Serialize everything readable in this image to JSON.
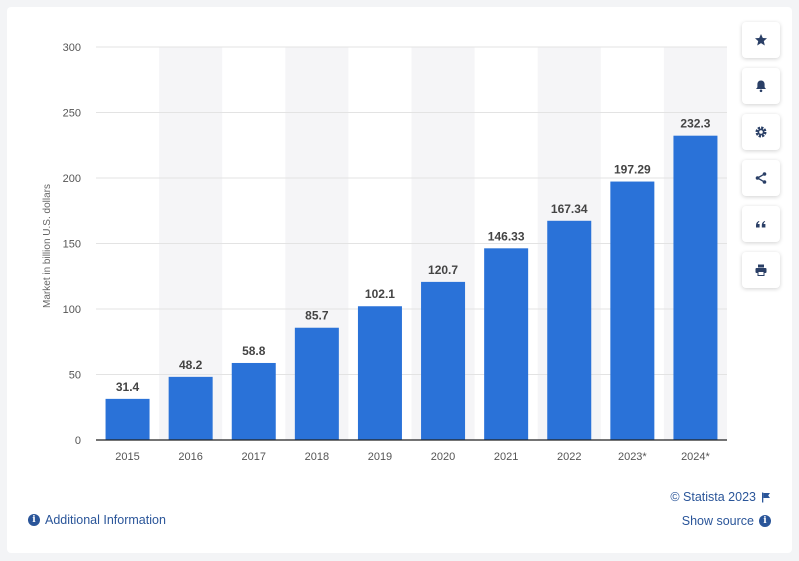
{
  "chart_data": {
    "type": "bar",
    "categories": [
      "2015",
      "2016",
      "2017",
      "2018",
      "2019",
      "2020",
      "2021",
      "2022",
      "2023*",
      "2024*"
    ],
    "values": [
      31.4,
      48.2,
      58.8,
      85.7,
      102.1,
      120.7,
      146.33,
      167.34,
      197.29,
      232.3
    ],
    "value_labels": [
      "31.4",
      "48.2",
      "58.8",
      "85.7",
      "102.1",
      "120.7",
      "146.33",
      "167.34",
      "197.29",
      "232.3"
    ],
    "ylabel": "Market in billion U.S. dollars",
    "ylim": [
      0,
      300
    ],
    "yticks": [
      0,
      50,
      100,
      150,
      200,
      250,
      300
    ],
    "bar_color": "#2a72d8",
    "grid": true,
    "alternate_column_shading": true
  },
  "toolbar": {
    "icons": [
      "star-icon",
      "bell-icon",
      "gear-icon",
      "share-icon",
      "quote-icon",
      "print-icon"
    ]
  },
  "footer": {
    "additional_info": "Additional Information",
    "copyright": "© Statista 2023",
    "show_source": "Show source"
  },
  "colors": {
    "accent": "#2a5599",
    "bar": "#2a72d8",
    "shade": "#f5f5f7"
  }
}
